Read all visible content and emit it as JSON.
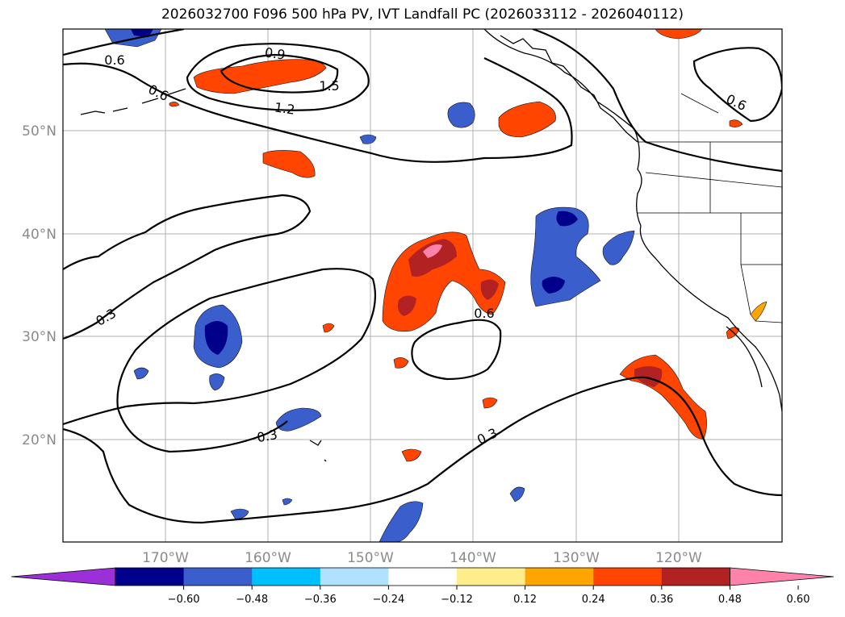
{
  "title": "2026032700 F096 500 hPa PV, IVT Landfall PC (2026033112 - 2026040112)",
  "map": {
    "lat_labels": [
      "50°N",
      "40°N",
      "30°N",
      "20°N"
    ],
    "lon_labels": [
      "170°W",
      "160°W",
      "150°W",
      "140°W",
      "130°W",
      "120°W"
    ],
    "contour_labels": [
      "0.6",
      "0.9",
      "1.5",
      "1.2",
      "0.6",
      "0.6",
      "0.3",
      "0.6",
      "0.3",
      "0.3"
    ]
  },
  "colorbar": {
    "ticks": [
      "−0.60",
      "−0.48",
      "−0.36",
      "−0.24",
      "−0.12",
      "0.12",
      "0.24",
      "0.36",
      "0.48",
      "0.60"
    ],
    "colors": [
      "#9b30d8",
      "#00008b",
      "#3a5fcd",
      "#00bfff",
      "#b0e2ff",
      "#ffffff",
      "#ffec8b",
      "#ffa500",
      "#ff4500",
      "#b22222",
      "#ff82ab"
    ]
  }
}
